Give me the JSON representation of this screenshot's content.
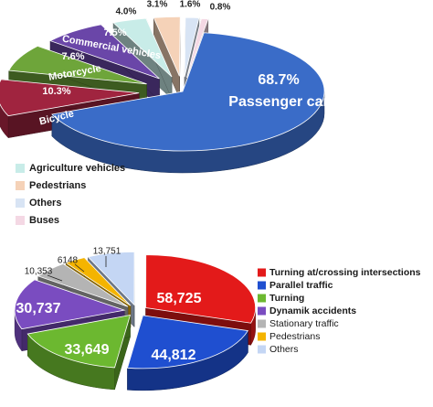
{
  "chart_data": [
    {
      "type": "pie",
      "title": "",
      "labels": [
        "Passenger car",
        "Bicycle",
        "Motorcycle",
        "Commercial vehicles",
        "Agriculture vehicles",
        "Pedestrians",
        "Others",
        "Buses"
      ],
      "values": [
        68.7,
        10.3,
        7.6,
        7.5,
        4.0,
        3.1,
        1.6,
        0.8
      ],
      "value_labels": [
        "68.7%",
        "10.3%",
        "7.6%",
        "7.5%",
        "4.0%",
        "3.1%",
        "1.6%",
        "0.8%"
      ],
      "colors": [
        "#3a6cc8",
        "#a0243f",
        "#6ea53a",
        "#6a46a8",
        "#c8ece8",
        "#f5d2b8",
        "#d8e4f4",
        "#f4d8e4"
      ],
      "legend_entries": [
        "Agriculture vehicles",
        "Pedestrians",
        "Others",
        "Buses"
      ],
      "legend_colors": [
        "#c8ece8",
        "#f5d2b8",
        "#d8e4f4",
        "#f4d8e4"
      ],
      "legend_position": "bottom-left",
      "style": "3d-exploded"
    },
    {
      "type": "pie",
      "title": "",
      "labels": [
        "Turning at/crossing intersections",
        "Parallel traffic",
        "Turning",
        "Dynamik accidents",
        "Stationary traffic",
        "Pedestrians",
        "Others"
      ],
      "values": [
        58725,
        44812,
        33649,
        30737,
        10353,
        6148,
        13751
      ],
      "value_labels": [
        "58,725",
        "44,812",
        "33,649",
        "30,737",
        "10,353",
        "6148",
        "13,751"
      ],
      "colors": [
        "#e31a1a",
        "#1f4fd0",
        "#6cb830",
        "#7a4cc0",
        "#b4b4b4",
        "#f4b400",
        "#c4d6f4"
      ],
      "legend_entries": [
        "Turning at/crossing intersections",
        "Parallel traffic",
        "Turning",
        "Dynamik accidents",
        "Stationary traffic",
        "Pedestrians",
        "Others"
      ],
      "legend_colors": [
        "#e31a1a",
        "#1f4fd0",
        "#6cb830",
        "#7a4cc0",
        "#b4b4b4",
        "#f4b400",
        "#c4d6f4"
      ],
      "legend_position": "right",
      "style": "3d-exploded"
    }
  ]
}
